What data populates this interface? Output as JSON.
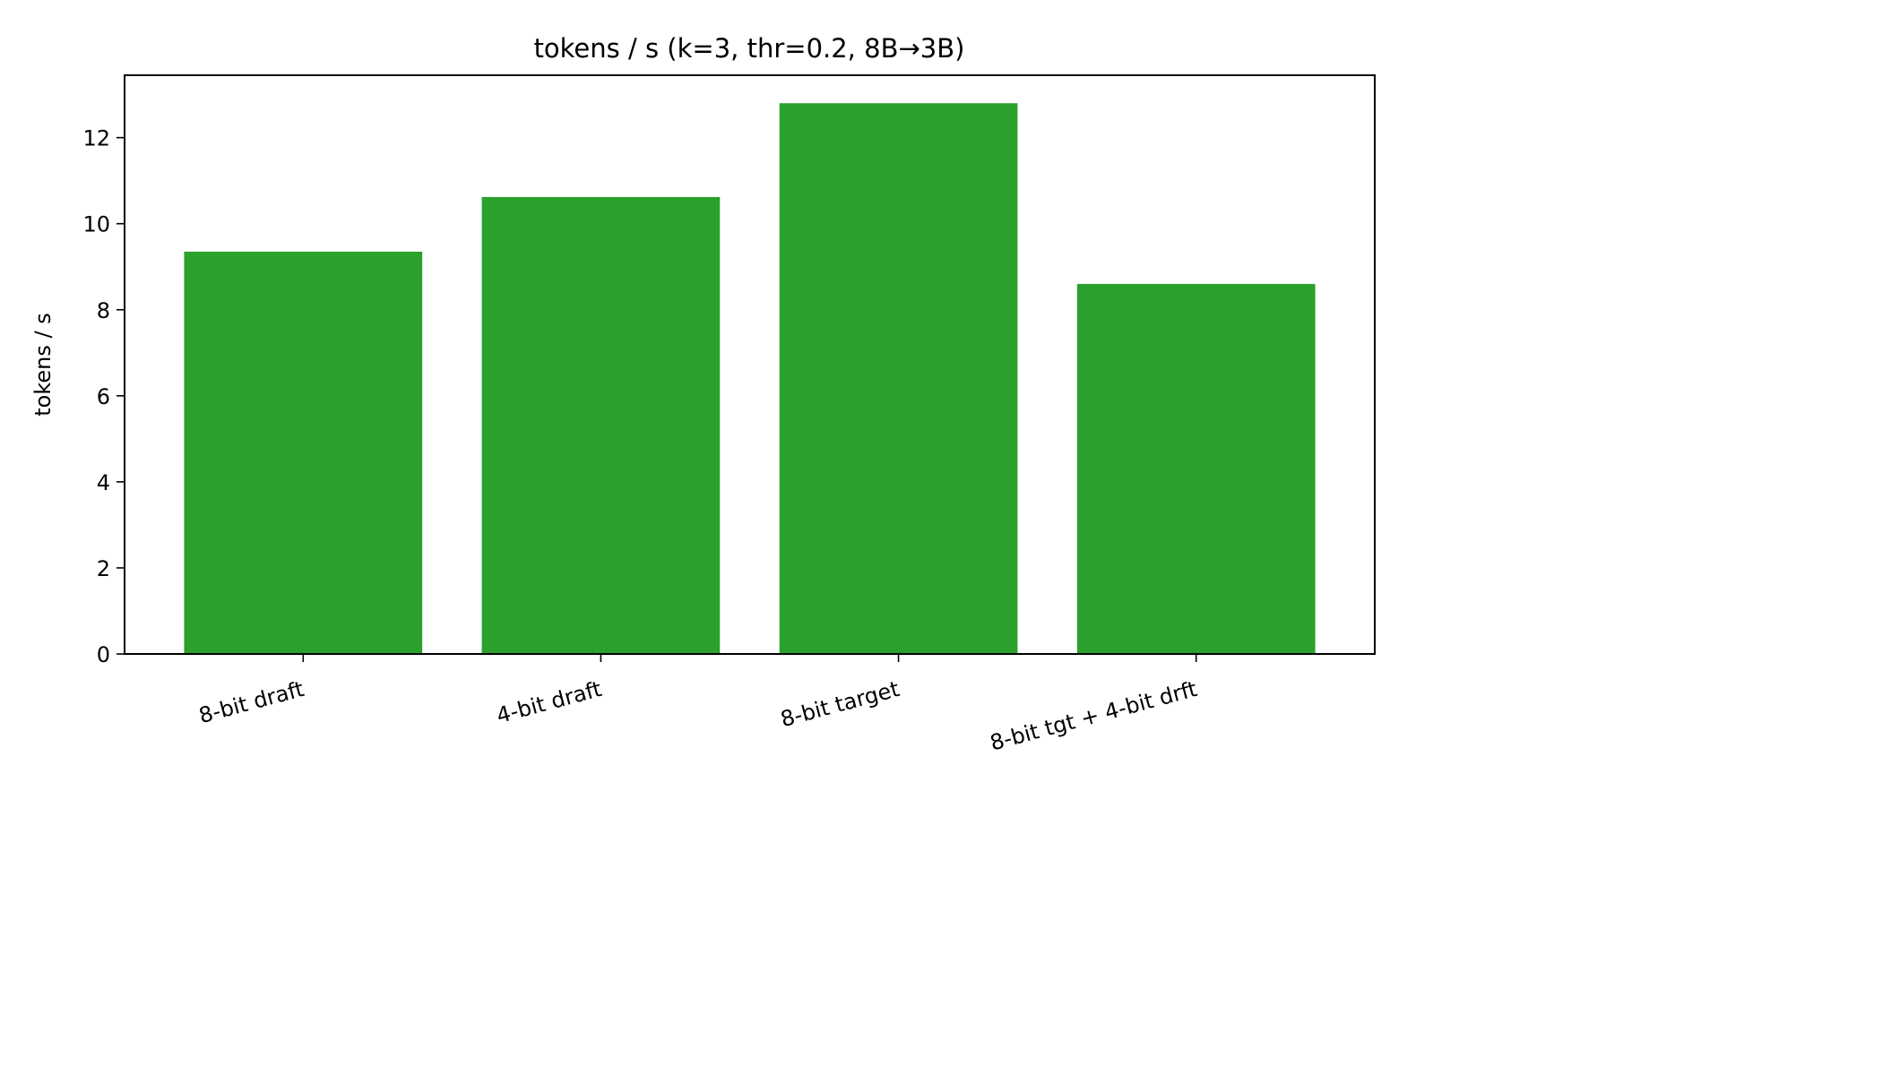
{
  "chart_data": {
    "type": "bar",
    "title": "tokens / s (k=3, thr=0.2, 8B→3B)",
    "xlabel": "",
    "ylabel": "tokens / s",
    "categories": [
      "8-bit draft",
      "4-bit draft",
      "8-bit target",
      "8-bit tgt + 4-bit drft"
    ],
    "values": [
      9.35,
      10.62,
      12.8,
      8.6
    ],
    "ylim": [
      0,
      13.45
    ],
    "yticks": [
      0,
      2,
      4,
      6,
      8,
      10,
      12
    ],
    "bar_color": "#2ca02c",
    "grid": false,
    "legend": "none"
  }
}
